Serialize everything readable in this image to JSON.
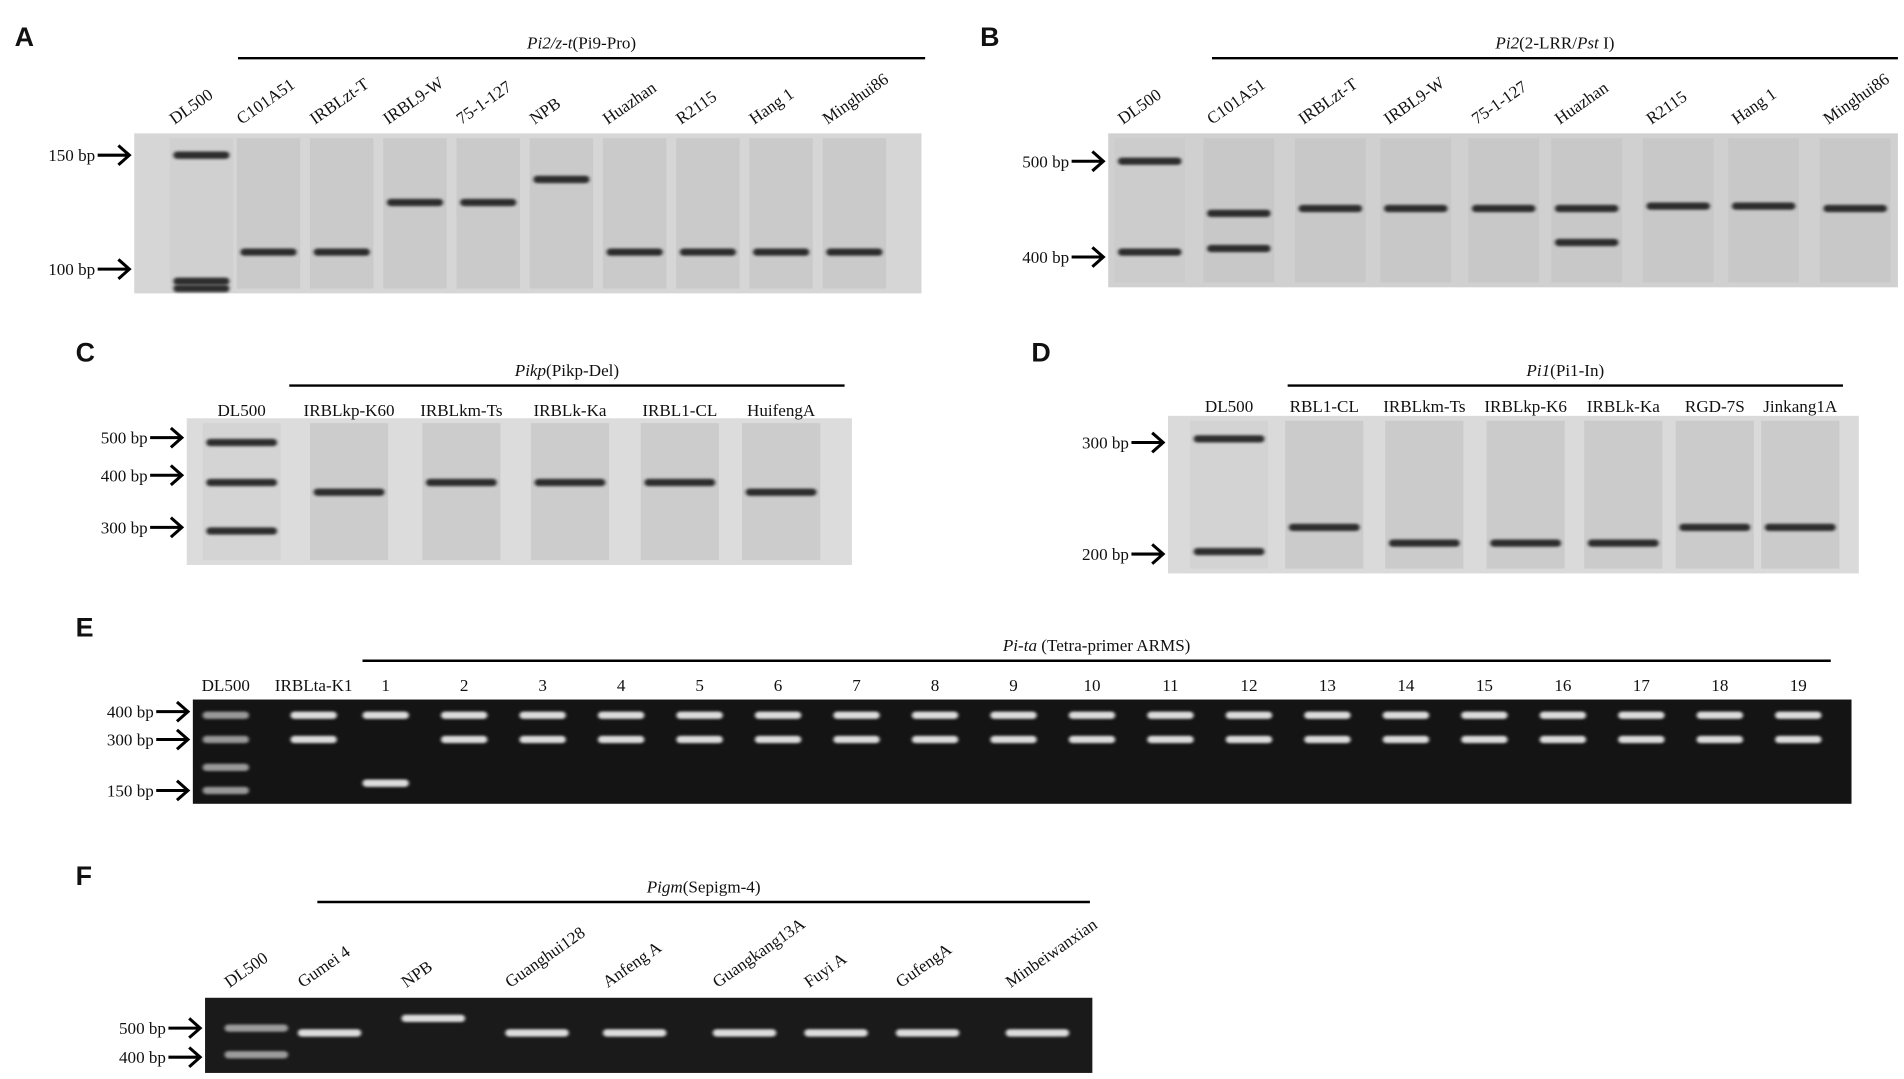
{
  "panels": [
    {
      "label": "A",
      "title_parts": [
        "Pi2/z-t",
        "(Pi9-Pro)"
      ],
      "lanes": [
        "DL500",
        "C101A51",
        "IRBLzt-T",
        "IRBL9-W",
        "75-1-127",
        "NPB",
        "Huazhan",
        "R2115",
        "Hang 1",
        "Minghui86"
      ],
      "markers": [
        "150 bp",
        "100 bp"
      ]
    },
    {
      "label": "B",
      "title_parts": [
        "Pi2",
        "(2-LRR/",
        "Pst",
        " I)"
      ],
      "lanes": [
        "DL500",
        "C101A51",
        "IRBLzt-T",
        "IRBL9-W",
        "75-1-127",
        "Huazhan",
        "R2115",
        "Hang 1",
        "Minghui86"
      ],
      "markers": [
        "500 bp",
        "400 bp"
      ]
    },
    {
      "label": "C",
      "title_parts": [
        "Pikp",
        "(Pikp-Del)"
      ],
      "lanes": [
        "DL500",
        "IRBLkp-K60",
        "IRBLkm-Ts",
        "IRBLk-Ka",
        "IRBL1-CL",
        "HuifengA"
      ],
      "markers": [
        "500 bp",
        "400 bp",
        "300 bp"
      ]
    },
    {
      "label": "D",
      "title_parts": [
        "Pi1",
        "(Pi1-In)"
      ],
      "lanes": [
        "DL500",
        "RBL1-CL",
        "IRBLkm-Ts",
        "IRBLkp-K6",
        "IRBLk-Ka",
        "RGD-7S",
        "Jinkang1A"
      ],
      "markers": [
        "300 bp",
        "200 bp"
      ]
    },
    {
      "label": "E",
      "title_parts": [
        "Pi-ta",
        " (Tetra-primer ARMS)"
      ],
      "lanes": [
        "DL500",
        "IRBLta-K1",
        "1",
        "2",
        "3",
        "4",
        "5",
        "6",
        "7",
        "8",
        "9",
        "10",
        "11",
        "12",
        "13",
        "14",
        "15",
        "16",
        "17",
        "18",
        "19"
      ],
      "markers": [
        "400 bp",
        "300 bp",
        "150 bp"
      ]
    },
    {
      "label": "F",
      "title_parts": [
        "Pigm",
        "(Sepigm-4)"
      ],
      "lanes": [
        "DL500",
        "Gumei 4",
        "NPB",
        "Guanghui128",
        "Anfeng A",
        "Guangkang13A",
        "Fuyi A",
        "GufengA",
        "Minbeiwanxian"
      ],
      "markers": [
        "500 bp",
        "400 bp"
      ]
    }
  ]
}
